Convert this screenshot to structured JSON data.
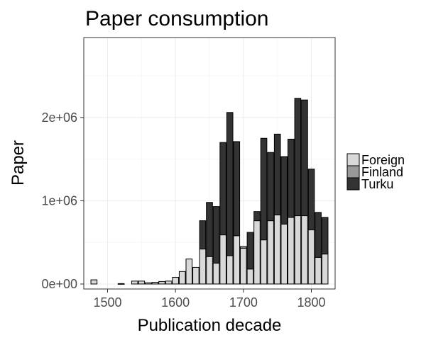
{
  "chart_data": {
    "type": "bar",
    "stacked": true,
    "title": "Paper consumption",
    "xlabel": "Publication decade",
    "ylabel": "Paper",
    "xlim": [
      1465,
      1835
    ],
    "ylim": [
      -60000,
      2960000
    ],
    "xticks": [
      {
        "value": 1500,
        "label": "1500"
      },
      {
        "value": 1600,
        "label": "1600"
      },
      {
        "value": 1700,
        "label": "1700"
      },
      {
        "value": 1800,
        "label": "1800"
      }
    ],
    "yticks": [
      {
        "value": 0,
        "label": "0e+00"
      },
      {
        "value": 1000000,
        "label": "1e+06"
      },
      {
        "value": 2000000,
        "label": "2e+06"
      }
    ],
    "grid": true,
    "legend_position": "right",
    "x": [
      1480,
      1520,
      1540,
      1550,
      1560,
      1570,
      1580,
      1590,
      1600,
      1610,
      1620,
      1630,
      1640,
      1650,
      1660,
      1670,
      1680,
      1690,
      1700,
      1710,
      1720,
      1730,
      1740,
      1750,
      1760,
      1770,
      1780,
      1790,
      1800,
      1810,
      1820
    ],
    "series": [
      {
        "name": "Foreign",
        "color": "#d9d9d9",
        "values": [
          50000,
          5000,
          35000,
          35000,
          15000,
          20000,
          30000,
          35000,
          80000,
          150000,
          300000,
          200000,
          420000,
          330000,
          250000,
          590000,
          340000,
          580000,
          430000,
          180000,
          760000,
          530000,
          760000,
          830000,
          720000,
          800000,
          820000,
          820000,
          650000,
          320000,
          360000
        ]
      },
      {
        "name": "Finland",
        "color": "#999999",
        "values": [
          0,
          0,
          0,
          0,
          0,
          0,
          0,
          0,
          0,
          0,
          0,
          0,
          0,
          0,
          0,
          0,
          0,
          0,
          20000,
          0,
          0,
          0,
          0,
          0,
          0,
          0,
          0,
          0,
          0,
          0,
          0
        ]
      },
      {
        "name": "Turku",
        "color": "#333333",
        "values": [
          0,
          0,
          0,
          0,
          0,
          0,
          0,
          0,
          0,
          0,
          0,
          0,
          340000,
          650000,
          680000,
          1110000,
          1720000,
          1130000,
          0,
          440000,
          110000,
          1220000,
          820000,
          970000,
          810000,
          940000,
          1410000,
          1390000,
          730000,
          540000,
          440000
        ]
      }
    ]
  }
}
